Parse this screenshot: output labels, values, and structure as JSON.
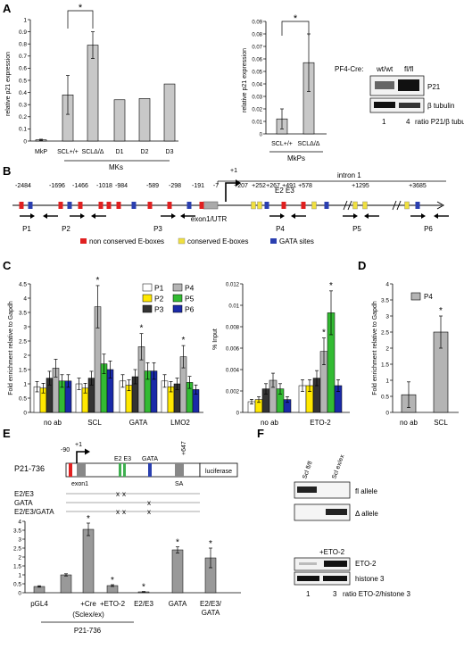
{
  "panel_letters": [
    "A",
    "B",
    "C",
    "D",
    "E",
    "F"
  ],
  "colors": {
    "bar_gray": "#c8c8c8",
    "p1": "#ffffff",
    "p2": "#ffe800",
    "p3": "#333333",
    "p4": "#b4b4b4",
    "p5": "#33bb33",
    "p6": "#1a2aa8",
    "red": "#e02020",
    "yellow": "#f0e040",
    "blue": "#2a3fb0"
  },
  "panelA": {
    "chart1": {
      "ylabel": "relative p21 expression",
      "yticks": [
        "0",
        "0.1",
        "0.2",
        "0.3",
        "0.4",
        "0.5",
        "0.6",
        "0.7",
        "0.8",
        "0.9",
        "1"
      ],
      "ylim": [
        0,
        1
      ],
      "categories": [
        "MkP",
        "SCL+/+",
        "SCLΔ/Δ",
        "D1",
        "D2",
        "D3"
      ],
      "values": [
        0.01,
        0.38,
        0.79,
        0.34,
        0.35,
        0.47
      ],
      "errors": [
        0.005,
        0.16,
        0.11,
        0,
        0,
        0
      ],
      "group_label": "MKs",
      "sig": "*"
    },
    "chart2": {
      "ylabel": "relative p21 expression",
      "yticks": [
        "0",
        "0.01",
        "0.02",
        "0.03",
        "0.04",
        "0.05",
        "0.06",
        "0.07",
        "0.08",
        "0.09"
      ],
      "ylim": [
        0,
        0.09
      ],
      "categories": [
        "SCL+/+",
        "SCLΔ/Δ"
      ],
      "values": [
        0.012,
        0.057
      ],
      "errors": [
        0.008,
        0.023
      ],
      "group_label": "MkPs",
      "sig": "*"
    },
    "blot": {
      "cre_label": "PF4-Cre:",
      "lane1": "wt/wt",
      "lane2": "fl/fl",
      "band1": "P21",
      "band2": "β tubulin",
      "ratio1": "1",
      "ratio2": "4",
      "ratio_label": "ratio P21/β tubulin"
    }
  },
  "panelB": {
    "positions": [
      "-2484",
      "-1696",
      "-1466",
      "-1018",
      "-984",
      "-589",
      "-298",
      "-191",
      "-7",
      "+1",
      "+207",
      "+252",
      "+267",
      "+491",
      "+578",
      "+1295",
      "+3685"
    ],
    "exon_label": "exon1/UTR",
    "intron_label": "intron 1",
    "e2e3": "E2 E3",
    "primers": [
      "P1",
      "P2",
      "P3",
      "P4",
      "P5",
      "P6"
    ],
    "legend": [
      "non conserved E-boxes",
      "conserved E-boxes",
      "GATA sites"
    ]
  },
  "panelC": {
    "ylabel1": "Fold enrichment relative to Gapdh",
    "yticks1": [
      "0",
      "0.5",
      "1",
      "1.5",
      "2",
      "2.5",
      "3",
      "3.5",
      "4",
      "4.5"
    ],
    "ylabel2": "% Input",
    "yticks2": [
      "0",
      "0.002",
      "0.004",
      "0.006",
      "0.008",
      "0.01",
      "0.012"
    ],
    "legend": [
      "P1",
      "P2",
      "P3",
      "P4",
      "P5",
      "P6"
    ],
    "groups1": [
      "no ab",
      "SCL",
      "GATA",
      "LMO2"
    ],
    "groups2": [
      "no ab",
      "ETO-2"
    ],
    "sig": "*"
  },
  "chart_data": [
    {
      "type": "bar",
      "title": "",
      "xlabel": "",
      "ylabel": "Fold enrichment relative to Gapdh",
      "ylim": [
        0,
        4.5
      ],
      "categories": [
        "no ab",
        "SCL",
        "GATA",
        "LMO2"
      ],
      "series": [
        {
          "name": "P1",
          "values": [
            0.9,
            1.0,
            1.1,
            1.1
          ]
        },
        {
          "name": "P2",
          "values": [
            0.85,
            0.85,
            0.95,
            0.9
          ]
        },
        {
          "name": "P3",
          "values": [
            1.2,
            1.2,
            1.25,
            1.0
          ]
        },
        {
          "name": "P4",
          "values": [
            1.55,
            3.7,
            2.3,
            1.95
          ]
        },
        {
          "name": "P5",
          "values": [
            1.1,
            1.7,
            1.45,
            1.05
          ]
        },
        {
          "name": "P6",
          "values": [
            1.1,
            1.5,
            1.45,
            0.8
          ]
        }
      ]
    },
    {
      "type": "bar",
      "title": "",
      "xlabel": "",
      "ylabel": "% Input",
      "ylim": [
        0,
        0.012
      ],
      "categories": [
        "no ab",
        "ETO-2"
      ],
      "series": [
        {
          "name": "P1",
          "values": [
            0.001,
            0.0025
          ]
        },
        {
          "name": "P2",
          "values": [
            0.0012,
            0.0025
          ]
        },
        {
          "name": "P3",
          "values": [
            0.0022,
            0.0032
          ]
        },
        {
          "name": "P4",
          "values": [
            0.003,
            0.0057
          ]
        },
        {
          "name": "P5",
          "values": [
            0.0022,
            0.0093
          ]
        },
        {
          "name": "P6",
          "values": [
            0.0012,
            0.0025
          ]
        }
      ]
    },
    {
      "type": "bar",
      "title": "",
      "xlabel": "",
      "ylabel": "Fold enrichment relative to Gapdh",
      "ylim": [
        0,
        4
      ],
      "categories": [
        "no ab",
        "SCL"
      ],
      "series": [
        {
          "name": "P4",
          "values": [
            0.55,
            2.5
          ]
        }
      ]
    },
    {
      "type": "bar",
      "title": "",
      "xlabel": "",
      "ylabel": "",
      "ylim": [
        0,
        4
      ],
      "categories": [
        "pGL4",
        "P21-736",
        "+Cre (Sclex/ex)",
        "+ETO-2",
        "E2/E3",
        "GATA",
        "E2/E3/GATA"
      ],
      "series": [
        {
          "name": "",
          "values": [
            0.35,
            1.0,
            3.55,
            0.4,
            0.05,
            2.4,
            1.95
          ]
        }
      ]
    }
  ],
  "panelD": {
    "legend": "P4",
    "yticks": [
      "0",
      "0.5",
      "1",
      "1.5",
      "2",
      "2.5",
      "3",
      "3.5",
      "4"
    ],
    "sig": "*"
  },
  "panelE": {
    "construct": "P21-736",
    "tss": "+1",
    "pos_m90": "-90",
    "pos_647": "+647",
    "exon1": "exon1",
    "e2e3": "E2 E3",
    "gata": "GATA",
    "sa": "SA",
    "luciferase": "luciferase",
    "mutants": [
      "E2/E3",
      "GATA",
      "E2/E3/GATA"
    ],
    "yticks": [
      "0",
      "0.5",
      "1",
      "1.5",
      "2",
      "2.5",
      "3",
      "3.5",
      "4"
    ],
    "cat_line2": "(Sclex/ex)",
    "group_label": "P21-736",
    "sig": "*"
  },
  "panelF": {
    "lane1": "Scl fl/fl",
    "lane2": "Scl ex/ex",
    "band_fl": "fl allele",
    "band_delta": "Δ allele",
    "eto_lane": "+ETO-2",
    "band_eto": "ETO-2",
    "band_h3": "histone 3",
    "ratio1": "1",
    "ratio2": "3",
    "ratio_label": "ratio ETO-2/histone 3"
  }
}
